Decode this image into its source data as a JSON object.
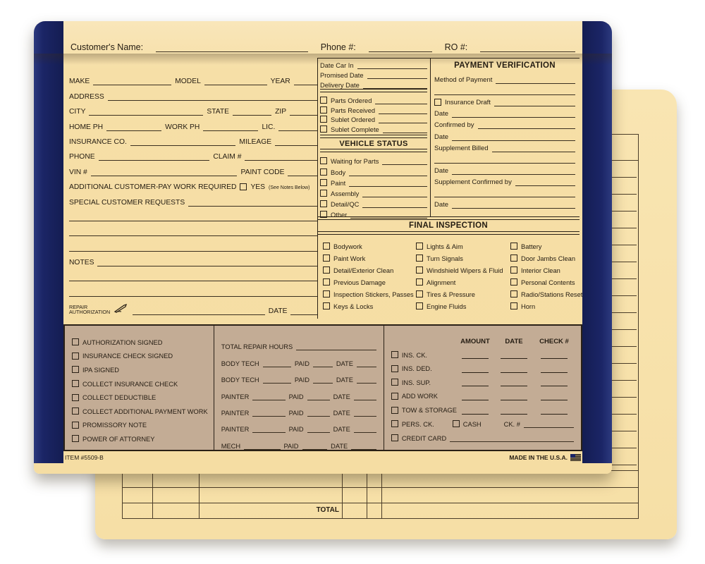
{
  "front": {
    "flap": {
      "customer": "Customer's Name:",
      "phone": "Phone #:",
      "ro": "RO #:"
    },
    "veh_rows": [
      {
        "f": [
          [
            "MAKE",
            3
          ],
          [
            "MODEL",
            2.4
          ],
          [
            "YEAR",
            0.9
          ]
        ]
      },
      {
        "f": [
          [
            "ADDRESS",
            1
          ]
        ]
      },
      {
        "f": [
          [
            "CITY",
            5
          ],
          [
            "STATE",
            1.7
          ],
          [
            "ZIP",
            1.2
          ]
        ]
      },
      {
        "f": [
          [
            "HOME PH",
            2
          ],
          [
            "WORK PH",
            2
          ],
          [
            "LIC.",
            1.4
          ]
        ]
      },
      {
        "f": [
          [
            "INSURANCE CO.",
            4
          ],
          [
            "MILEAGE",
            1.6
          ]
        ]
      },
      {
        "f": [
          [
            "PHONE",
            4
          ],
          [
            "CLAIM #",
            2.6
          ]
        ]
      },
      {
        "f": [
          [
            "VIN #",
            5
          ],
          [
            "PAINT CODE",
            1
          ]
        ]
      }
    ],
    "additional": {
      "label": "ADDITIONAL CUSTOMER-PAY WORK REQUIRED",
      "check": "YES",
      "note": "(See Notes Below)"
    },
    "special_label": "SPECIAL CUSTOMER REQUESTS",
    "blank_lines_after_special": 3,
    "notes_label": "NOTES",
    "blank_lines_after_notes": 2,
    "repair_auth": {
      "line1": "REPAIR",
      "line2": "AUTHORIZATION",
      "date": "DATE"
    },
    "schedule": {
      "dates": [
        "Date Car In",
        "Promised Date",
        "Delivery Date"
      ],
      "parts": [
        "Parts Ordered",
        "Parts Received",
        "Sublet Ordered",
        "Sublet Complete"
      ]
    },
    "vehicle_status": {
      "title": "VEHICLE STATUS",
      "items": [
        "Waiting for Parts",
        "Body",
        "Paint",
        "Assembly",
        "Detail/QC",
        "Other"
      ]
    },
    "payment": {
      "title": "PAYMENT VERIFICATION",
      "rows": [
        {
          "t": "line",
          "l": "Method of Payment"
        },
        {
          "t": "cont"
        },
        {
          "t": "check",
          "l": "Insurance Draft"
        },
        {
          "t": "line",
          "l": "Date"
        },
        {
          "t": "line",
          "l": "Confirmed by"
        },
        {
          "t": "line",
          "l": "Date"
        },
        {
          "t": "line",
          "l": "Supplement Billed"
        },
        {
          "t": "cont"
        },
        {
          "t": "line",
          "l": "Date"
        },
        {
          "t": "line",
          "l": "Supplement Confirmed by"
        },
        {
          "t": "cont"
        },
        {
          "t": "line",
          "l": "Date"
        }
      ]
    },
    "final_inspection": {
      "title": "FINAL INSPECTION",
      "columns": [
        [
          "Bodywork",
          "Paint Work",
          "Detail/Exterior Clean",
          "Previous Damage",
          "Inspection Stickers, Passes",
          "Keys & Locks"
        ],
        [
          "Lights & Aim",
          "Turn Signals",
          "Windshield Wipers & Fluid",
          "Alignment",
          "Tires & Pressure",
          "Engine Fluids"
        ],
        [
          "Battery",
          "Door Jambs Clean",
          "Interior Clean",
          "Personal Contents",
          "Radio/Stations Reset",
          "Horn"
        ]
      ]
    },
    "bottom": {
      "left_checks": [
        "AUTHORIZATION SIGNED",
        "INSURANCE CHECK SIGNED",
        "IPA SIGNED",
        "COLLECT INSURANCE CHECK",
        "COLLECT DEDUCTIBLE",
        "COLLECT ADDITIONAL PAYMENT WORK",
        "PROMISSORY NOTE",
        "POWER OF ATTORNEY"
      ],
      "middle": {
        "total_label": "TOTAL REPAIR HOURS",
        "paid_label": "PAID",
        "date_label": "DATE",
        "techs": [
          "BODY TECH",
          "BODY TECH",
          "PAINTER",
          "PAINTER",
          "PAINTER",
          "MECH"
        ]
      },
      "right": {
        "headers": [
          "AMOUNT",
          "DATE",
          "CHECK #"
        ],
        "rows": [
          "INS. CK.",
          "INS. DED.",
          "INS. SUP.",
          "ADD WORK",
          "TOW & STORAGE"
        ],
        "pers_label": "PERS. CK.",
        "cash_label": "CASH",
        "ck_label": "CK. #",
        "credit_label": "CREDIT CARD"
      }
    },
    "footer": {
      "item": "ITEM #5509-B",
      "made": "MADE IN THE U.S.A."
    }
  },
  "back": {
    "total_label": "TOTAL",
    "right_column_rows": 18,
    "bottom_row_lines": 4
  },
  "colors": {
    "paper": "#f6dfa7",
    "back_paper": "#f8e3ae",
    "navy": "#1b2566",
    "brown_panel": "#c3ac95",
    "ink": "#2a2116"
  }
}
